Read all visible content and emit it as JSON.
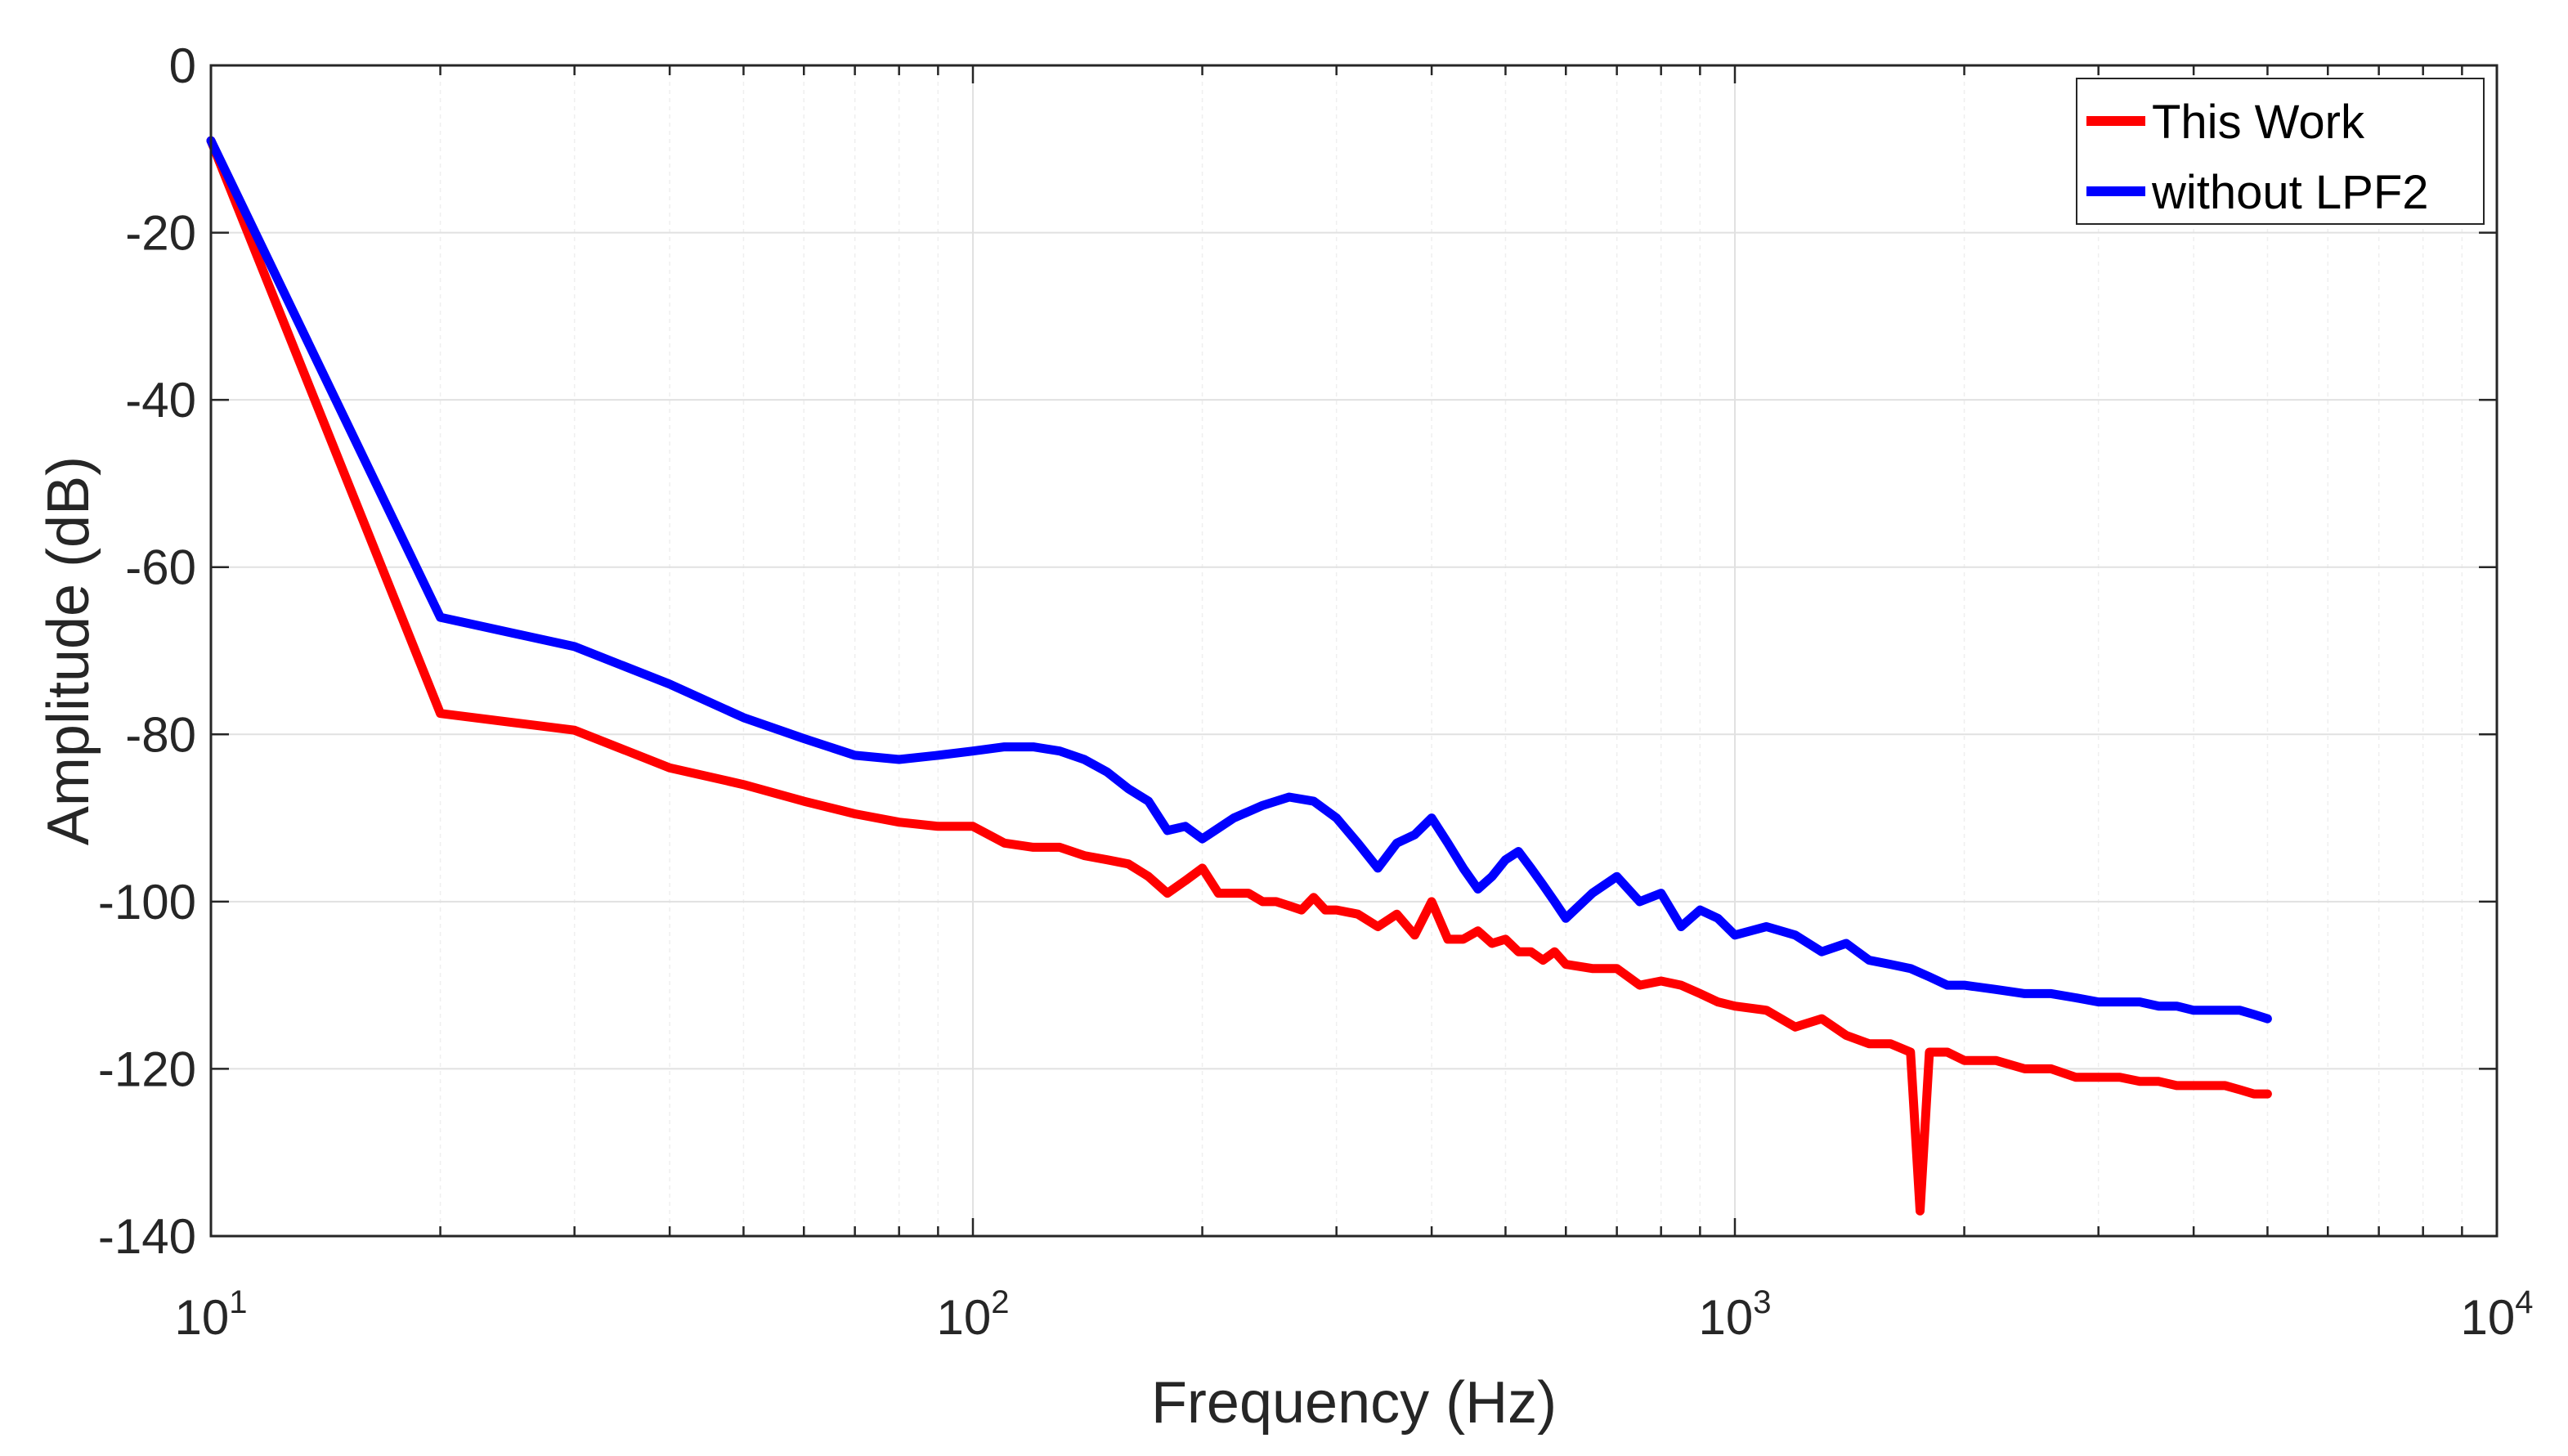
{
  "chart_data": {
    "type": "line",
    "title": "",
    "xlabel": "Frequency (Hz)",
    "ylabel": "Amplitude (dB)",
    "xscale": "log",
    "xlim": [
      10,
      10000
    ],
    "ylim": [
      -140,
      0
    ],
    "grid": true,
    "legend_position": "top-right",
    "x_ticks": [
      {
        "base": "10",
        "exp": "1"
      },
      {
        "base": "10",
        "exp": "2"
      },
      {
        "base": "10",
        "exp": "3"
      },
      {
        "base": "10",
        "exp": "4"
      }
    ],
    "y_ticks": [
      "0",
      "-20",
      "-40",
      "-60",
      "-80",
      "-100",
      "-120",
      "-140"
    ],
    "series": [
      {
        "name": "This Work",
        "color": "#ff0000",
        "x": [
          10,
          20,
          30,
          40,
          50,
          60,
          70,
          80,
          90,
          100,
          110,
          120,
          130,
          140,
          150,
          160,
          170,
          180,
          190,
          200,
          210,
          220,
          230,
          240,
          250,
          260,
          270,
          280,
          290,
          300,
          320,
          340,
          360,
          380,
          400,
          420,
          440,
          460,
          480,
          500,
          520,
          540,
          560,
          580,
          600,
          650,
          700,
          750,
          800,
          850,
          900,
          950,
          1000,
          1100,
          1200,
          1300,
          1400,
          1500,
          1600,
          1700,
          1750,
          1800,
          1900,
          2000,
          2200,
          2400,
          2600,
          2800,
          3000,
          3200,
          3400,
          3600,
          3800,
          4000,
          4200,
          4400,
          4600,
          4800,
          5000
        ],
        "y": [
          -9,
          -77.5,
          -79.5,
          -84,
          -86,
          -88,
          -89.5,
          -90.5,
          -91,
          -91,
          -93,
          -93.5,
          -93.5,
          -94.5,
          -95,
          -95.5,
          -97,
          -99,
          -97.5,
          -96,
          -99,
          -99,
          -99,
          -100,
          -100,
          -100.5,
          -101,
          -99.5,
          -101,
          -101,
          -101.5,
          -103,
          -101.5,
          -104,
          -100,
          -104.5,
          -104.5,
          -103.5,
          -105,
          -104.5,
          -106,
          -106,
          -107,
          -106,
          -107.5,
          -108,
          -108,
          -110,
          -109.5,
          -110,
          -111,
          -112,
          -112.5,
          -113,
          -115,
          -114,
          -116,
          -117,
          -117,
          -118,
          -137,
          -118,
          -118,
          -119,
          -119,
          -120,
          -120,
          -121,
          -121,
          -121,
          -121.5,
          -121.5,
          -122,
          -122,
          -122,
          -122,
          -122.5,
          -123,
          -123
        ]
      },
      {
        "name": "without LPF2",
        "color": "#0000ff",
        "x": [
          10,
          20,
          30,
          40,
          50,
          60,
          70,
          80,
          90,
          100,
          110,
          120,
          130,
          140,
          150,
          160,
          170,
          180,
          190,
          200,
          220,
          240,
          260,
          280,
          300,
          320,
          340,
          360,
          380,
          400,
          420,
          440,
          460,
          480,
          500,
          520,
          540,
          560,
          580,
          600,
          650,
          700,
          750,
          800,
          850,
          900,
          950,
          1000,
          1100,
          1200,
          1300,
          1400,
          1500,
          1600,
          1700,
          1800,
          1900,
          2000,
          2200,
          2400,
          2600,
          2800,
          3000,
          3200,
          3400,
          3600,
          3800,
          4000,
          4200,
          4400,
          4600,
          4800,
          5000
        ],
        "y": [
          -9,
          -66,
          -69.5,
          -74,
          -78,
          -80.5,
          -82.5,
          -83,
          -82.5,
          -82,
          -81.5,
          -81.5,
          -82,
          -83,
          -84.5,
          -86.5,
          -88,
          -91.5,
          -91,
          -92.5,
          -90,
          -88.5,
          -87.5,
          -88,
          -90,
          -93,
          -96,
          -93,
          -92,
          -90,
          -93,
          -96,
          -98.5,
          -97,
          -95,
          -94,
          -96,
          -98,
          -100,
          -102,
          -99,
          -97,
          -100,
          -99,
          -103,
          -101,
          -102,
          -104,
          -103,
          -104,
          -106,
          -105,
          -107,
          -107.5,
          -108,
          -109,
          -110,
          -110,
          -110.5,
          -111,
          -111,
          -111.5,
          -112,
          -112,
          -112,
          -112.5,
          -112.5,
          -113,
          -113,
          -113,
          -113,
          -113.5,
          -114
        ]
      }
    ]
  }
}
